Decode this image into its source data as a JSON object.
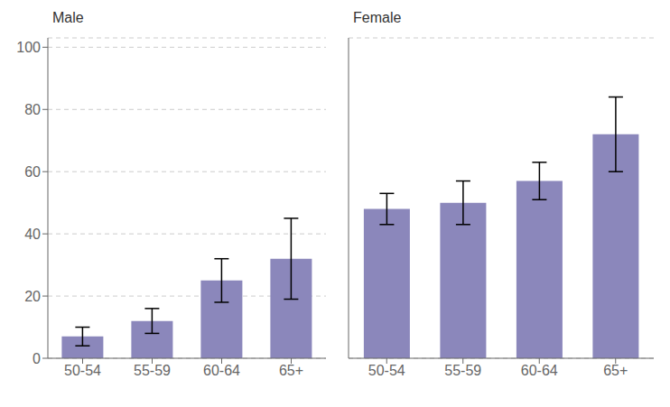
{
  "chart_data": [
    {
      "type": "bar",
      "title": "Male",
      "categories": [
        "50-54",
        "55-59",
        "60-64",
        "65+"
      ],
      "values": [
        7,
        12,
        25,
        32
      ],
      "errors": [
        3,
        4,
        7,
        13
      ],
      "color": "#8b87bb",
      "ylim": [
        0,
        103
      ],
      "yticks": [
        0,
        20,
        40,
        60,
        80,
        100
      ],
      "grid": true
    },
    {
      "type": "bar",
      "title": "Female",
      "categories": [
        "50-54",
        "55-59",
        "60-64",
        "65+"
      ],
      "values": [
        48,
        50,
        57,
        72
      ],
      "errors": [
        5,
        7,
        6,
        12
      ],
      "color": "#8b87bb",
      "ylim": [
        0,
        103
      ],
      "yticks": [
        0,
        20,
        40,
        60,
        80,
        100
      ],
      "grid": true,
      "tick_labels": "x"
    }
  ]
}
